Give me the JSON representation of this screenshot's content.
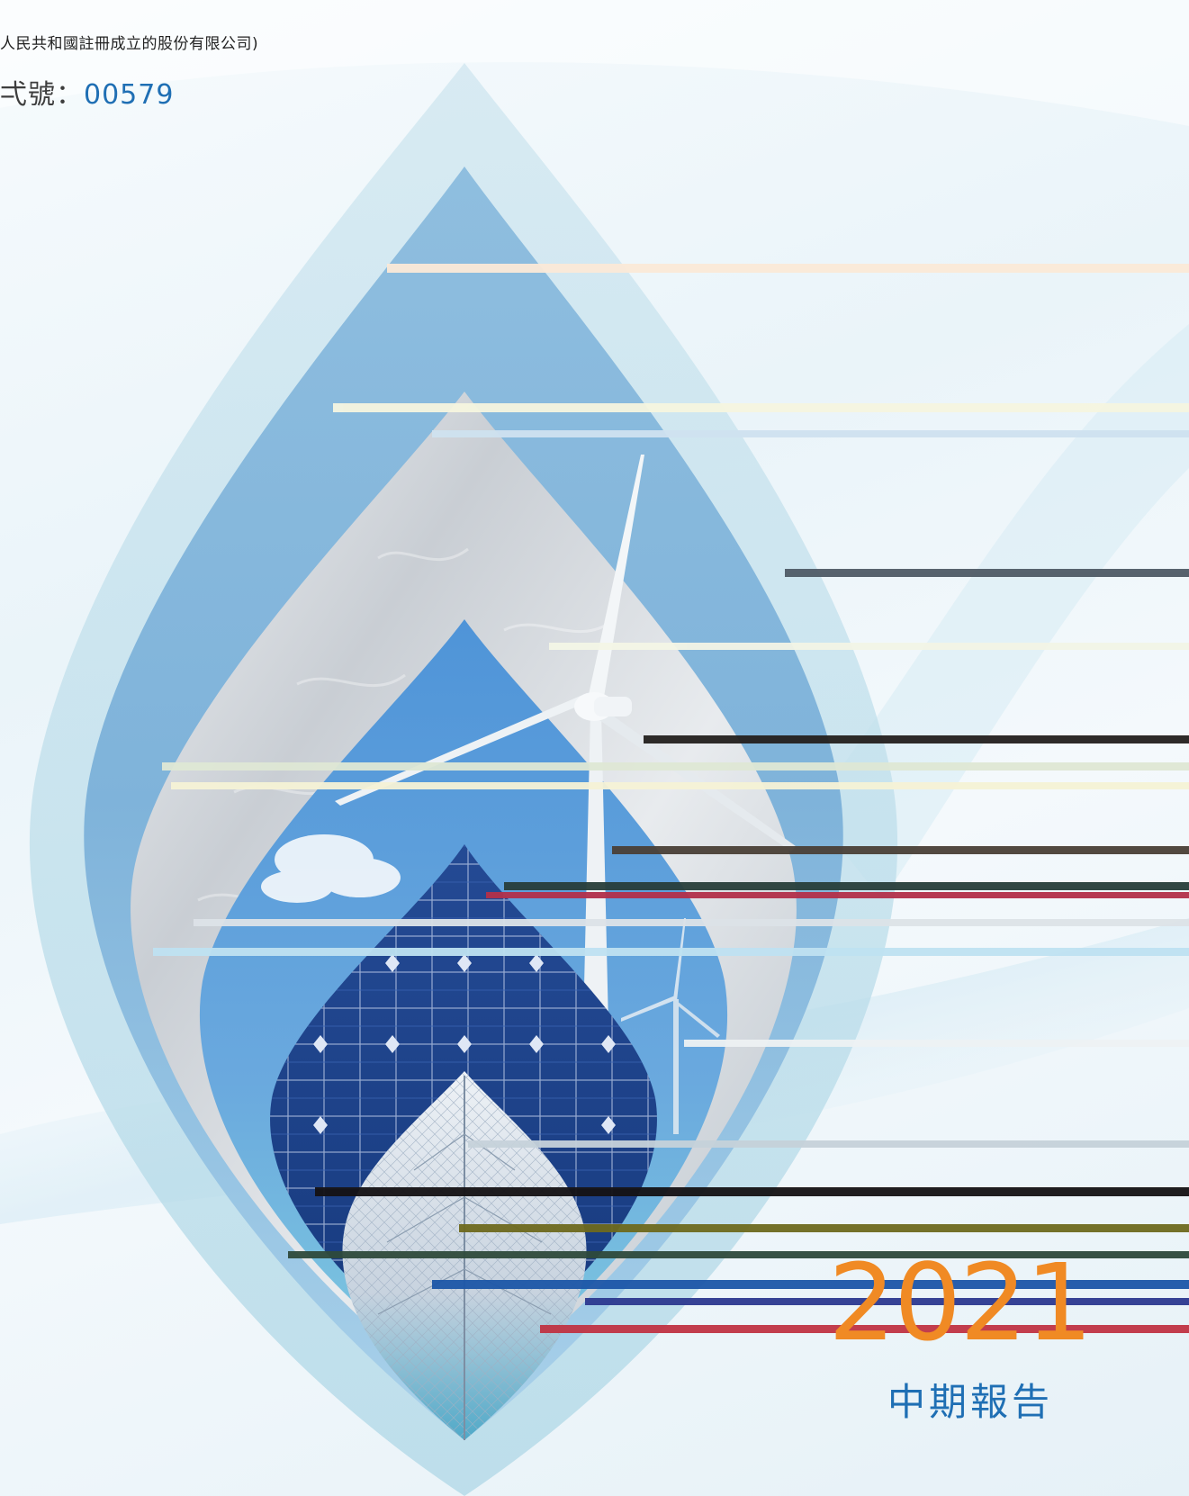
{
  "cover": {
    "registration_note": "人民共和國註冊成立的股份有限公司)",
    "stock_code_label": "弌號：",
    "stock_code_value": "00579",
    "year": "2021",
    "report_type": "中期報告"
  },
  "colors": {
    "year_orange": "#f08a24",
    "title_blue": "#1f6fb4",
    "solar_navy": "#1e3f8a",
    "sky_blue": "#5f9fd6"
  },
  "icons": {
    "wind_turbine": "wind-turbine-icon",
    "solar_panel": "solar-panel-icon",
    "leaf": "leaf-icon"
  }
}
